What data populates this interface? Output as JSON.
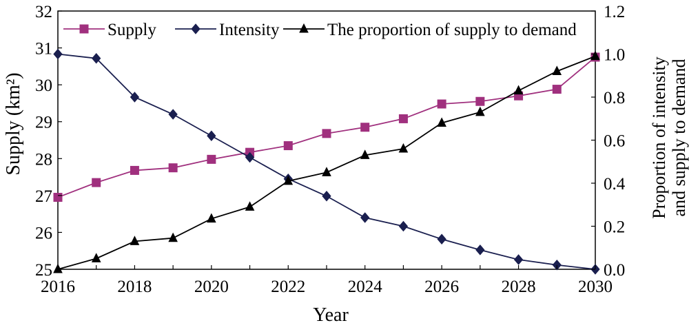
{
  "chart_data": {
    "type": "line",
    "xlabel": "Year",
    "ylabel_left": "Supply (km²)",
    "ylabel_right": [
      "Proportion of intensity",
      "and supply to demand"
    ],
    "x": [
      2016,
      2017,
      2018,
      2019,
      2020,
      2021,
      2022,
      2023,
      2024,
      2025,
      2026,
      2027,
      2028,
      2029,
      2030
    ],
    "x_ticks": [
      "2016",
      "2018",
      "2020",
      "2022",
      "2024",
      "2026",
      "2028",
      "2030"
    ],
    "y_left_ticks": [
      "25",
      "26",
      "27",
      "28",
      "29",
      "30",
      "31",
      "32"
    ],
    "y_right_ticks": [
      "0.0",
      "0.2",
      "0.4",
      "0.6",
      "0.8",
      "1.0",
      "1.2"
    ],
    "ylim_left": [
      25,
      32
    ],
    "ylim_right": [
      0,
      1.2
    ],
    "legend_position": "top",
    "grid": false,
    "series": [
      {
        "name": "Supply",
        "axis": "left",
        "marker": "square",
        "color": "#a0307e",
        "values": [
          26.95,
          27.35,
          27.68,
          27.75,
          27.98,
          28.17,
          28.35,
          28.68,
          28.85,
          29.08,
          29.48,
          29.55,
          29.7,
          29.88,
          30.75
        ]
      },
      {
        "name": "Intensity",
        "axis": "right",
        "marker": "diamond",
        "color": "#1a1f4f",
        "values": [
          1.0,
          0.98,
          0.8,
          0.72,
          0.62,
          0.52,
          0.42,
          0.34,
          0.24,
          0.2,
          0.14,
          0.09,
          0.045,
          0.02,
          0.0
        ]
      },
      {
        "name": "The proportion of supply to demand",
        "axis": "right",
        "marker": "triangle",
        "color": "#000000",
        "values": [
          0.0,
          0.05,
          0.13,
          0.145,
          0.235,
          0.29,
          0.41,
          0.45,
          0.53,
          0.56,
          0.68,
          0.73,
          0.83,
          0.92,
          0.99
        ]
      }
    ]
  }
}
